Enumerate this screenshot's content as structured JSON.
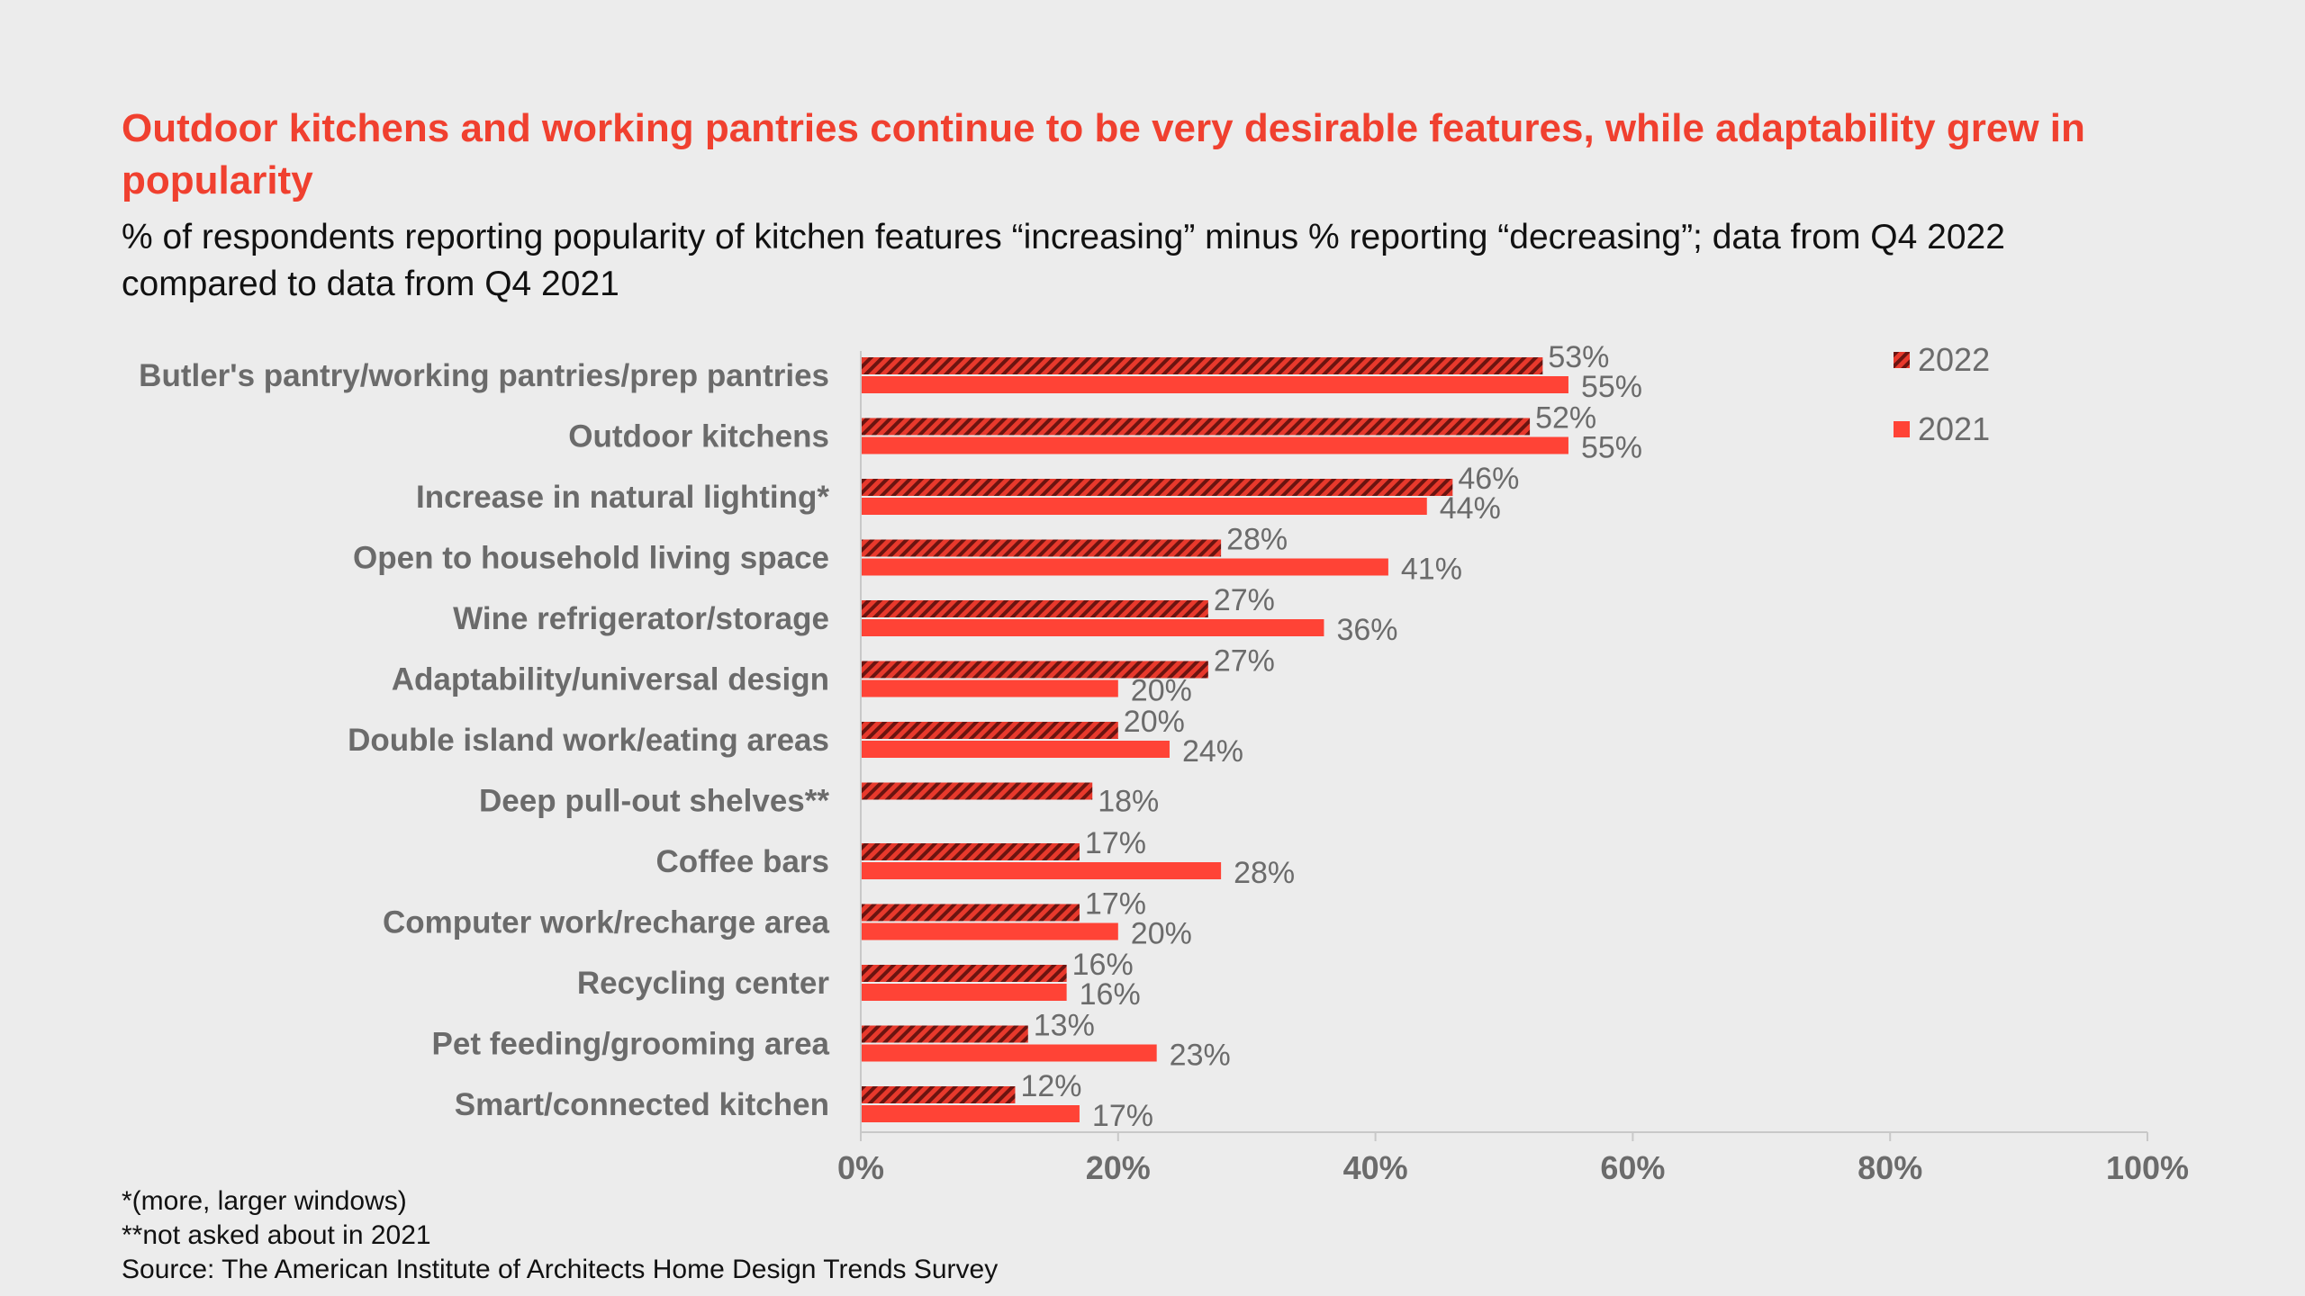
{
  "title": "Outdoor kitchens and working pantries continue to be very desirable features, while adaptability grew in popularity",
  "subtitle": "% of respondents reporting popularity of kitchen features “increasing” minus % reporting “decreasing”; data from Q4 2022 compared to data from Q4 2021",
  "footnotes": {
    "note1": "*(more, larger windows)",
    "note2": "**not asked about in 2021",
    "source": "Source: The American Institute of Architects Home Design Trends Survey"
  },
  "colors": {
    "accent": "#f0402f",
    "bar_2021": "#ff4336",
    "bar_2022_base": "#e8392c",
    "bar_2022_hatch": "#6a1410",
    "text_gray": "#6b6b6b",
    "axis": "#c8c8c8"
  },
  "chart_data": {
    "type": "bar",
    "orientation": "horizontal",
    "categories": [
      "Butler's pantry/working pantries/prep pantries",
      "Outdoor kitchens",
      "Increase in natural lighting*",
      "Open to household living space",
      "Wine refrigerator/storage",
      "Adaptability/universal design",
      "Double island work/eating areas",
      "Deep pull-out shelves**",
      "Coffee bars",
      "Computer work/recharge area",
      "Recycling center",
      "Pet feeding/grooming area",
      "Smart/connected kitchen"
    ],
    "series": [
      {
        "name": "2022",
        "pattern": "hatched",
        "values": [
          53,
          52,
          46,
          28,
          27,
          27,
          20,
          18,
          17,
          17,
          16,
          13,
          12
        ]
      },
      {
        "name": "2021",
        "pattern": "solid",
        "values": [
          55,
          55,
          44,
          41,
          36,
          20,
          24,
          null,
          28,
          20,
          16,
          23,
          17
        ]
      }
    ],
    "value_suffix": "%",
    "xlim": [
      0,
      100
    ],
    "xticks": [
      0,
      20,
      40,
      60,
      80,
      100
    ],
    "xtick_labels": [
      "0%",
      "20%",
      "40%",
      "60%",
      "80%",
      "100%"
    ],
    "grid": false,
    "legend_position": "top-right"
  }
}
